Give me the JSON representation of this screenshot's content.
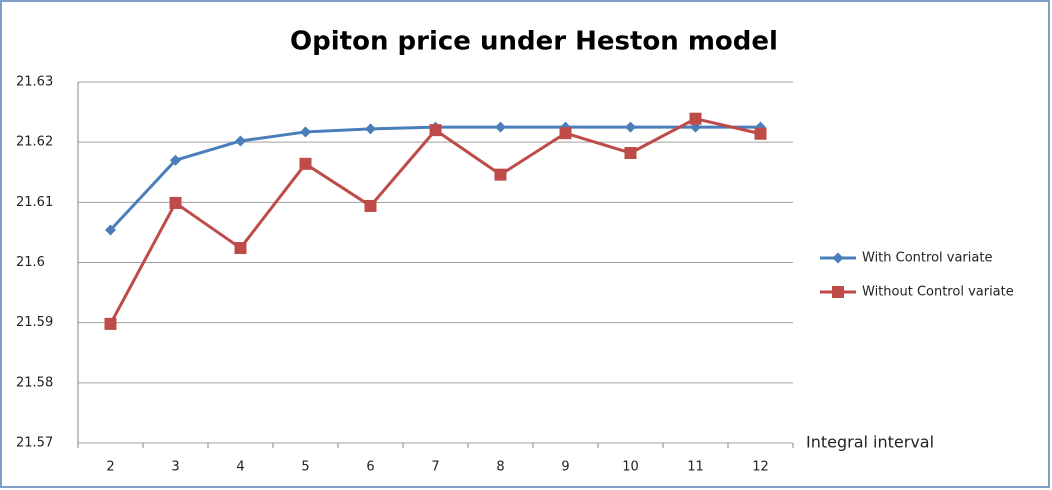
{
  "chart_data": {
    "type": "line",
    "title": "Opiton price under Heston model",
    "x_label": "Integral interval",
    "categories": [
      "2",
      "3",
      "4",
      "5",
      "6",
      "7",
      "8",
      "9",
      "10",
      "11",
      "12"
    ],
    "series": [
      {
        "name": "With Control variate",
        "color": "#4a7ebb",
        "marker": "diamond",
        "values": [
          21.6054,
          21.617,
          21.6202,
          21.6217,
          21.6222,
          21.6225,
          21.6225,
          21.6225,
          21.6225,
          21.6225,
          21.6225
        ]
      },
      {
        "name": "Without Control variate",
        "color": "#be4b48",
        "marker": "square",
        "values": [
          21.5898,
          21.6099,
          21.6024,
          21.6164,
          21.6094,
          21.622,
          21.6146,
          21.6215,
          21.6182,
          21.6239,
          21.6214
        ]
      }
    ],
    "ylim": [
      21.57,
      21.63
    ],
    "yticks": [
      21.57,
      21.58,
      21.59,
      21.6,
      21.61,
      21.62,
      21.63
    ],
    "grid": true,
    "legend": "right"
  }
}
